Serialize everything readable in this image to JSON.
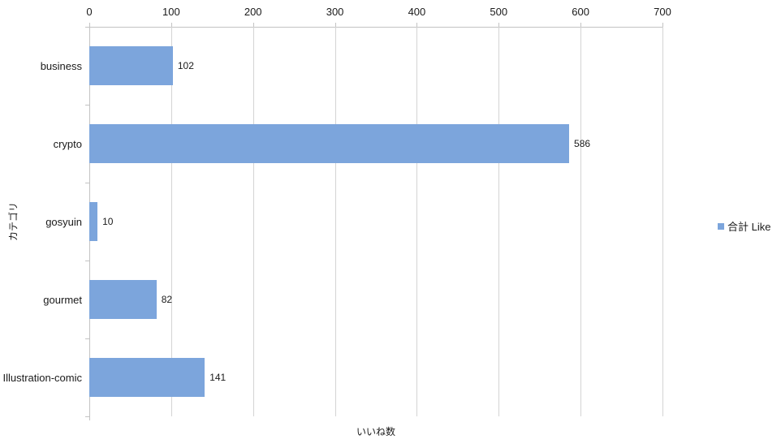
{
  "chart_data": {
    "type": "bar",
    "orientation": "horizontal",
    "categories": [
      "business",
      "crypto",
      "gosyuin",
      "gourmet",
      "Illustration-comic"
    ],
    "series": [
      {
        "name": "合計 Like",
        "values": [
          102,
          586,
          10,
          82,
          141
        ]
      }
    ],
    "data_labels": [
      "102",
      "586",
      "10",
      "82",
      "141"
    ],
    "xlabel": "いいね数",
    "ylabel": "カテゴリ",
    "xlim": [
      0,
      700
    ],
    "xticks": [
      0,
      100,
      200,
      300,
      400,
      500,
      600,
      700
    ],
    "grid": "vertical",
    "legend_position": "right",
    "bar_color": "#7CA5DC",
    "gridline_color": "#d4d4d4",
    "axis_color": "#c3c3c3"
  }
}
